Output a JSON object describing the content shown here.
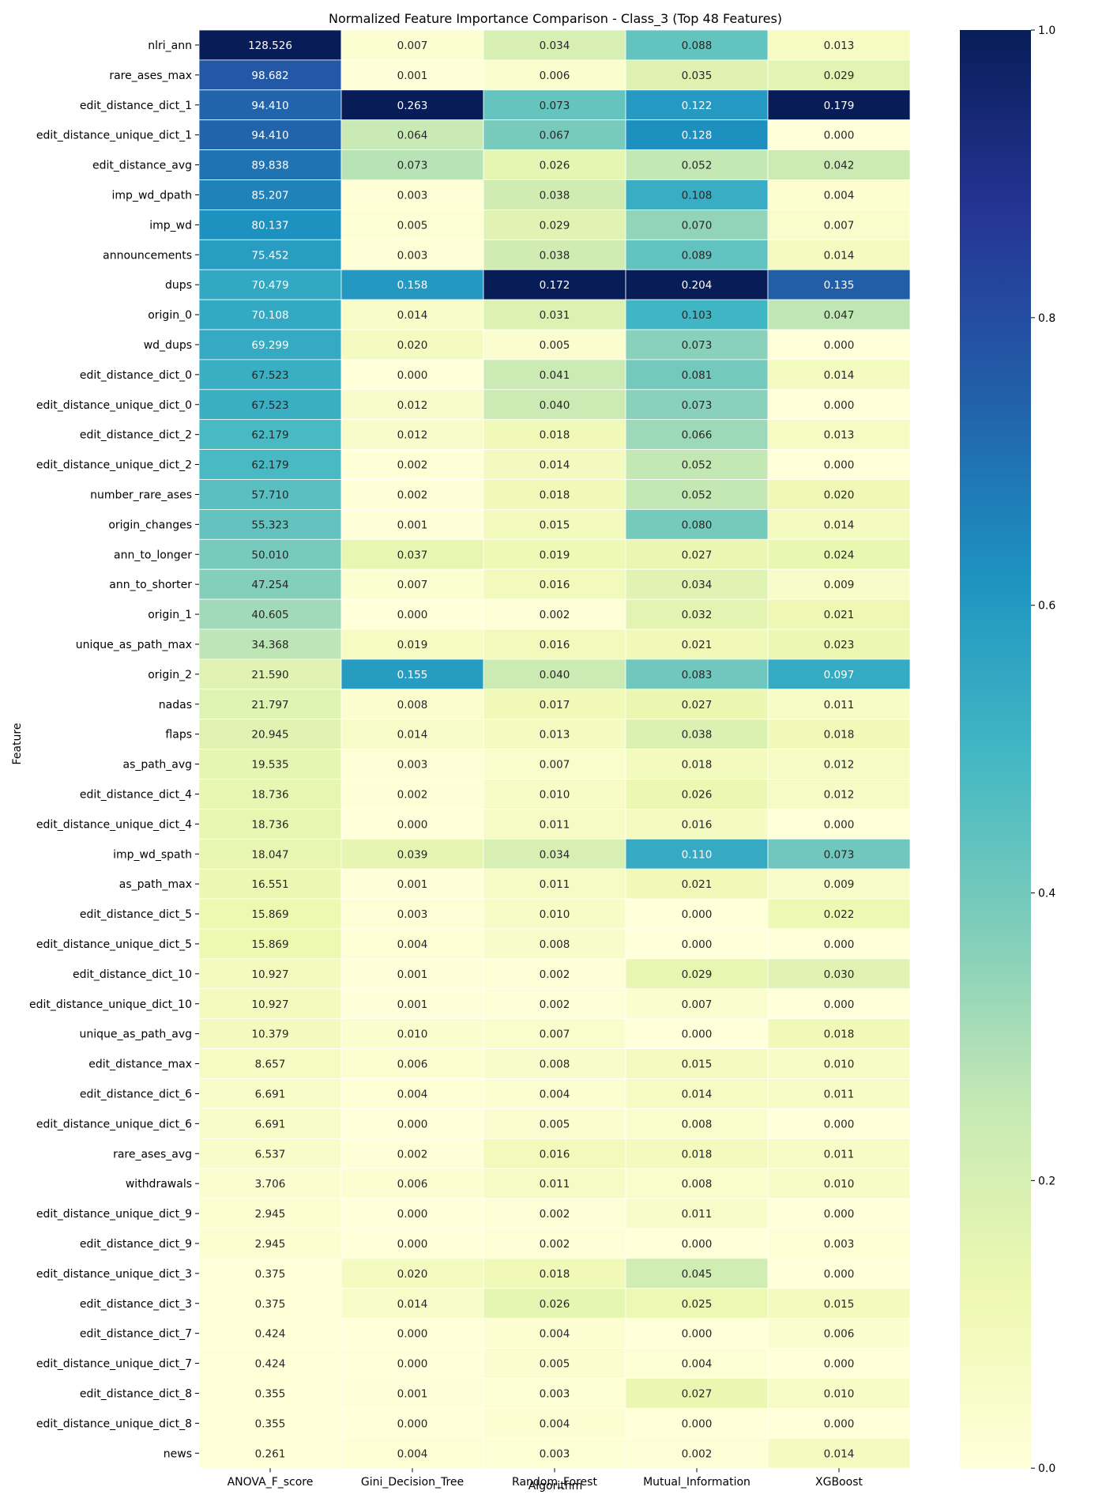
{
  "chart_data": {
    "type": "heatmap",
    "title": "Normalized Feature Importance Comparison - Class_3 (Top 48 Features)",
    "xlabel": "Algorithm",
    "ylabel": "Feature",
    "columns": [
      "ANOVA_F_score",
      "Gini_Decision_Tree",
      "Random_Forest",
      "Mutual_Information",
      "XGBoost"
    ],
    "rows": [
      {
        "feature": "nlri_ann",
        "values": [
          128.526,
          0.007,
          0.034,
          0.088,
          0.013
        ]
      },
      {
        "feature": "rare_ases_max",
        "values": [
          98.682,
          0.001,
          0.006,
          0.035,
          0.029
        ]
      },
      {
        "feature": "edit_distance_dict_1",
        "values": [
          94.41,
          0.263,
          0.073,
          0.122,
          0.179
        ]
      },
      {
        "feature": "edit_distance_unique_dict_1",
        "values": [
          94.41,
          0.064,
          0.067,
          0.128,
          0.0
        ]
      },
      {
        "feature": "edit_distance_avg",
        "values": [
          89.838,
          0.073,
          0.026,
          0.052,
          0.042
        ]
      },
      {
        "feature": "imp_wd_dpath",
        "values": [
          85.207,
          0.003,
          0.038,
          0.108,
          0.004
        ]
      },
      {
        "feature": "imp_wd",
        "values": [
          80.137,
          0.005,
          0.029,
          0.07,
          0.007
        ]
      },
      {
        "feature": "announcements",
        "values": [
          75.452,
          0.003,
          0.038,
          0.089,
          0.014
        ]
      },
      {
        "feature": "dups",
        "values": [
          70.479,
          0.158,
          0.172,
          0.204,
          0.135
        ]
      },
      {
        "feature": "origin_0",
        "values": [
          70.108,
          0.014,
          0.031,
          0.103,
          0.047
        ]
      },
      {
        "feature": "wd_dups",
        "values": [
          69.299,
          0.02,
          0.005,
          0.073,
          0.0
        ]
      },
      {
        "feature": "edit_distance_dict_0",
        "values": [
          67.523,
          0.0,
          0.041,
          0.081,
          0.014
        ]
      },
      {
        "feature": "edit_distance_unique_dict_0",
        "values": [
          67.523,
          0.012,
          0.04,
          0.073,
          0.0
        ]
      },
      {
        "feature": "edit_distance_dict_2",
        "values": [
          62.179,
          0.012,
          0.018,
          0.066,
          0.013
        ]
      },
      {
        "feature": "edit_distance_unique_dict_2",
        "values": [
          62.179,
          0.002,
          0.014,
          0.052,
          0.0
        ]
      },
      {
        "feature": "number_rare_ases",
        "values": [
          57.71,
          0.002,
          0.018,
          0.052,
          0.02
        ]
      },
      {
        "feature": "origin_changes",
        "values": [
          55.323,
          0.001,
          0.015,
          0.08,
          0.014
        ]
      },
      {
        "feature": "ann_to_longer",
        "values": [
          50.01,
          0.037,
          0.019,
          0.027,
          0.024
        ]
      },
      {
        "feature": "ann_to_shorter",
        "values": [
          47.254,
          0.007,
          0.016,
          0.034,
          0.009
        ]
      },
      {
        "feature": "origin_1",
        "values": [
          40.605,
          0.0,
          0.002,
          0.032,
          0.021
        ]
      },
      {
        "feature": "unique_as_path_max",
        "values": [
          34.368,
          0.019,
          0.016,
          0.021,
          0.023
        ]
      },
      {
        "feature": "origin_2",
        "values": [
          21.59,
          0.155,
          0.04,
          0.083,
          0.097
        ]
      },
      {
        "feature": "nadas",
        "values": [
          21.797,
          0.008,
          0.017,
          0.027,
          0.011
        ]
      },
      {
        "feature": "flaps",
        "values": [
          20.945,
          0.014,
          0.013,
          0.038,
          0.018
        ]
      },
      {
        "feature": "as_path_avg",
        "values": [
          19.535,
          0.003,
          0.007,
          0.018,
          0.012
        ]
      },
      {
        "feature": "edit_distance_dict_4",
        "values": [
          18.736,
          0.002,
          0.01,
          0.026,
          0.012
        ]
      },
      {
        "feature": "edit_distance_unique_dict_4",
        "values": [
          18.736,
          0.0,
          0.011,
          0.016,
          0.0
        ]
      },
      {
        "feature": "imp_wd_spath",
        "values": [
          18.047,
          0.039,
          0.034,
          0.11,
          0.073
        ]
      },
      {
        "feature": "as_path_max",
        "values": [
          16.551,
          0.001,
          0.011,
          0.021,
          0.009
        ]
      },
      {
        "feature": "edit_distance_dict_5",
        "values": [
          15.869,
          0.003,
          0.01,
          0.0,
          0.022
        ]
      },
      {
        "feature": "edit_distance_unique_dict_5",
        "values": [
          15.869,
          0.004,
          0.008,
          0.0,
          0.0
        ]
      },
      {
        "feature": "edit_distance_dict_10",
        "values": [
          10.927,
          0.001,
          0.002,
          0.029,
          0.03
        ]
      },
      {
        "feature": "edit_distance_unique_dict_10",
        "values": [
          10.927,
          0.001,
          0.002,
          0.007,
          0.0
        ]
      },
      {
        "feature": "unique_as_path_avg",
        "values": [
          10.379,
          0.01,
          0.007,
          0.0,
          0.018
        ]
      },
      {
        "feature": "edit_distance_max",
        "values": [
          8.657,
          0.006,
          0.008,
          0.015,
          0.01
        ]
      },
      {
        "feature": "edit_distance_dict_6",
        "values": [
          6.691,
          0.004,
          0.004,
          0.014,
          0.011
        ]
      },
      {
        "feature": "edit_distance_unique_dict_6",
        "values": [
          6.691,
          0.0,
          0.005,
          0.008,
          0.0
        ]
      },
      {
        "feature": "rare_ases_avg",
        "values": [
          6.537,
          0.002,
          0.016,
          0.018,
          0.011
        ]
      },
      {
        "feature": "withdrawals",
        "values": [
          3.706,
          0.006,
          0.011,
          0.008,
          0.01
        ]
      },
      {
        "feature": "edit_distance_unique_dict_9",
        "values": [
          2.945,
          0.0,
          0.002,
          0.011,
          0.0
        ]
      },
      {
        "feature": "edit_distance_dict_9",
        "values": [
          2.945,
          0.0,
          0.002,
          0.0,
          0.003
        ]
      },
      {
        "feature": "edit_distance_unique_dict_3",
        "values": [
          0.375,
          0.02,
          0.018,
          0.045,
          0.0
        ]
      },
      {
        "feature": "edit_distance_dict_3",
        "values": [
          0.375,
          0.014,
          0.026,
          0.025,
          0.015
        ]
      },
      {
        "feature": "edit_distance_dict_7",
        "values": [
          0.424,
          0.0,
          0.004,
          0.0,
          0.006
        ]
      },
      {
        "feature": "edit_distance_unique_dict_7",
        "values": [
          0.424,
          0.0,
          0.005,
          0.004,
          0.0
        ]
      },
      {
        "feature": "edit_distance_dict_8",
        "values": [
          0.355,
          0.001,
          0.003,
          0.027,
          0.01
        ]
      },
      {
        "feature": "edit_distance_unique_dict_8",
        "values": [
          0.355,
          0.0,
          0.004,
          0.0,
          0.0
        ]
      },
      {
        "feature": "news",
        "values": [
          0.261,
          0.004,
          0.003,
          0.002,
          0.014
        ]
      }
    ],
    "colorbar": {
      "colormap": "YlGnBu",
      "range": [
        0.0,
        1.0
      ],
      "ticks": [
        "0.0",
        "0.2",
        "0.4",
        "0.6",
        "0.8",
        "1.0"
      ]
    },
    "value_format": "3 decimals",
    "colors": {
      "ylgnbu": [
        "#ffffd9",
        "#edf8b1",
        "#c7e9b4",
        "#7fcdbb",
        "#41b6c4",
        "#1d91c0",
        "#225ea8",
        "#253494",
        "#081d58"
      ],
      "grid_line": "#ffffff",
      "text_dark": "#262626",
      "text_light": "#ffffff"
    }
  }
}
